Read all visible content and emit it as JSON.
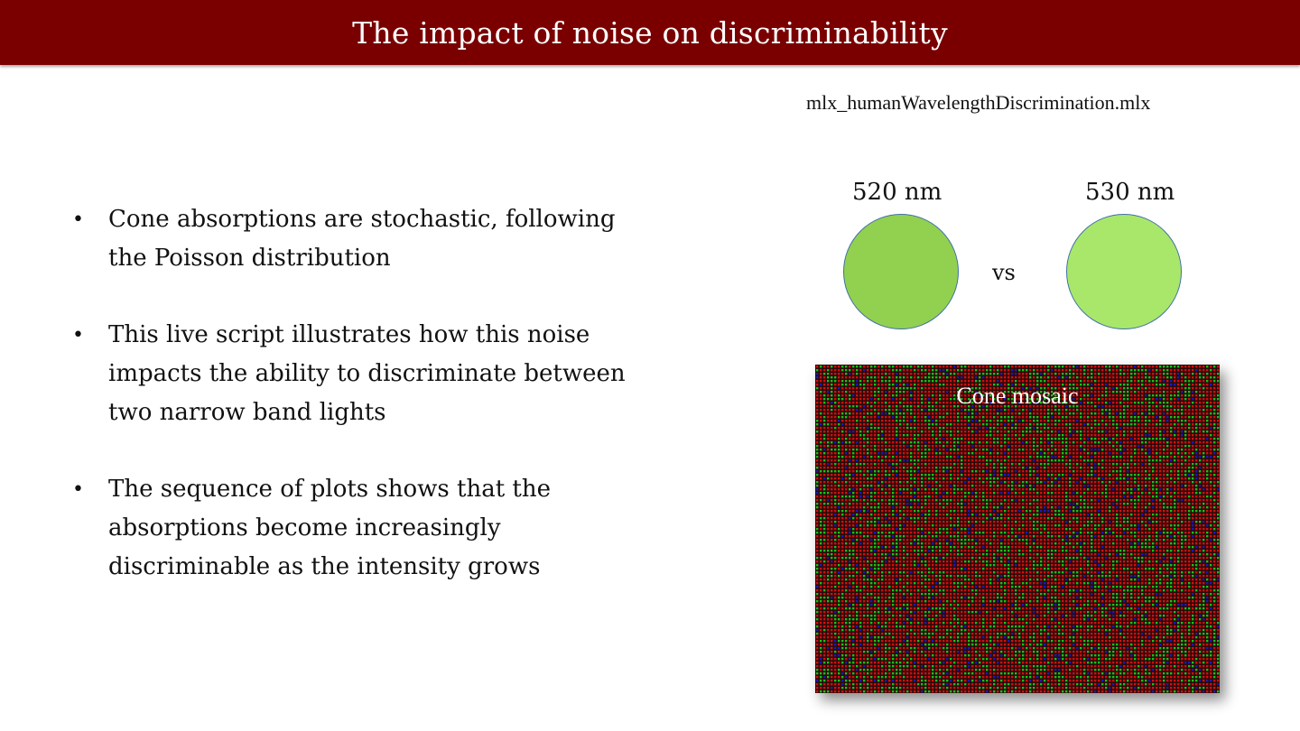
{
  "title": "The impact of noise on discriminability",
  "filename": "mlx_humanWavelengthDiscrimination.mlx",
  "bullets": [
    "Cone absorptions are stochastic, following the Poisson distribution",
    "This live script illustrates how this noise impacts the ability to discriminate between two narrow band lights",
    "The sequence of plots shows that the absorptions become increasingly discriminable as the intensity grows"
  ],
  "stimuli": {
    "left": {
      "label": "520 nm",
      "color": "#92d050"
    },
    "right": {
      "label": "530 nm",
      "color": "#a9e76a"
    },
    "vs": "vs"
  },
  "mosaic": {
    "label": "Cone mosaic",
    "colors": {
      "L": "#d01010",
      "M": "#18c018",
      "S": "#1a1ab8",
      "background": "#2a0a0a"
    }
  },
  "colors": {
    "title_bar": "#7a0000",
    "circle_border": "#3f70a8"
  }
}
